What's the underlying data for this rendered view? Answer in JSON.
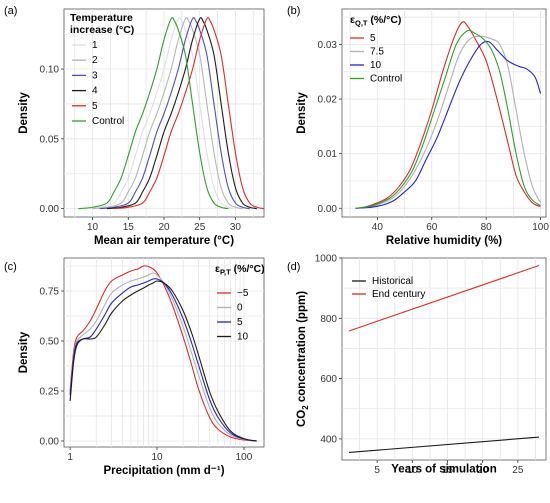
{
  "colors": {
    "c1": "#e0e0e0",
    "c2": "#b4b4b4",
    "c3": "#4d4db8",
    "c4": "#1a1a1a",
    "c5": "#d72c2c",
    "control": "#2ca02c",
    "eq_5": "#d72c2c",
    "eq_7_5": "#b0b0b0",
    "eq_10": "#2222cc",
    "eq_control": "#2ca02c",
    "p_m5": "#d72c2c",
    "p_0": "#b0b0b0",
    "p_5": "#2222cc",
    "p_10": "#1a1a1a",
    "historical": "#1a1a1a",
    "endcentury": "#d72c2c"
  },
  "chart_data": [
    {
      "id": "a",
      "panel_label": "(a)",
      "type": "line",
      "xlabel": "Mean air temperature (°C)",
      "ylabel": "Density",
      "xlim": [
        6,
        34
      ],
      "ylim": [
        -0.006,
        0.143
      ],
      "xticks": [
        10,
        15,
        20,
        25,
        30
      ],
      "yticks": [
        0,
        0.05,
        0.1
      ],
      "yticklabels": [
        "0.00",
        "0.05",
        "0.10"
      ],
      "legend_title": [
        "Temperature",
        "increase (°C)"
      ],
      "series": [
        {
          "name": "1",
          "color": "c1",
          "shift": 1
        },
        {
          "name": "2",
          "color": "c2",
          "shift": 2
        },
        {
          "name": "3",
          "color": "c3",
          "shift": 3
        },
        {
          "name": "4",
          "color": "c4",
          "shift": 4
        },
        {
          "name": "5",
          "color": "c5",
          "shift": 5
        },
        {
          "name": "Control",
          "color": "control",
          "shift": 0
        }
      ],
      "control_curve": [
        [
          8,
          0
        ],
        [
          10,
          0.001
        ],
        [
          12,
          0.004
        ],
        [
          13,
          0.012
        ],
        [
          14,
          0.022
        ],
        [
          15,
          0.038
        ],
        [
          16,
          0.055
        ],
        [
          17,
          0.068
        ],
        [
          18,
          0.083
        ],
        [
          19,
          0.1
        ],
        [
          20,
          0.121
        ],
        [
          21,
          0.136
        ],
        [
          21.5,
          0.134
        ],
        [
          22,
          0.128
        ],
        [
          23,
          0.11
        ],
        [
          24,
          0.075
        ],
        [
          25,
          0.04
        ],
        [
          26,
          0.015
        ],
        [
          27,
          0.004
        ],
        [
          28,
          0.001
        ],
        [
          29,
          0
        ]
      ]
    },
    {
      "id": "b",
      "panel_label": "(b)",
      "type": "line",
      "xlabel": "Relative humidity (%)",
      "ylabel": "Density",
      "xlim": [
        27,
        102
      ],
      "ylim": [
        -0.0016,
        0.0365
      ],
      "xticks": [
        40,
        60,
        80,
        100
      ],
      "yticks": [
        0,
        0.01,
        0.02,
        0.03
      ],
      "yticklabels": [
        "0.00",
        "0.01",
        "0.02",
        "0.03"
      ],
      "legend_title": [
        "ε",
        "Q,T",
        " (%/°C)"
      ],
      "series": [
        {
          "name": "5",
          "color": "eq_5",
          "points": [
            [
              32,
              0
            ],
            [
              36,
              0.0003
            ],
            [
              40,
              0.001
            ],
            [
              44,
              0.002
            ],
            [
              48,
              0.004
            ],
            [
              52,
              0.007
            ],
            [
              56,
              0.012
            ],
            [
              60,
              0.018
            ],
            [
              64,
              0.025
            ],
            [
              68,
              0.031
            ],
            [
              71,
              0.034
            ],
            [
              73,
              0.0335
            ],
            [
              76,
              0.031
            ],
            [
              80,
              0.027
            ],
            [
              84,
              0.02
            ],
            [
              88,
              0.012
            ],
            [
              91,
              0.006
            ],
            [
              94,
              0.003
            ],
            [
              97,
              0.001
            ],
            [
              100,
              0.0003
            ]
          ]
        },
        {
          "name": "7.5",
          "color": "eq_7_5",
          "points": [
            [
              32,
              0
            ],
            [
              38,
              0.0003
            ],
            [
              42,
              0.001
            ],
            [
              46,
              0.002
            ],
            [
              50,
              0.004
            ],
            [
              54,
              0.007
            ],
            [
              58,
              0.011
            ],
            [
              62,
              0.016
            ],
            [
              66,
              0.022
            ],
            [
              70,
              0.028
            ],
            [
              74,
              0.031
            ],
            [
              78,
              0.0315
            ],
            [
              82,
              0.031
            ],
            [
              85,
              0.03
            ],
            [
              88,
              0.026
            ],
            [
              91,
              0.018
            ],
            [
              94,
              0.01
            ],
            [
              97,
              0.004
            ],
            [
              100,
              0.001
            ]
          ]
        },
        {
          "name": "10",
          "color": "eq_10",
          "points": [
            [
              32,
              0
            ],
            [
              38,
              0.0002
            ],
            [
              42,
              0.0006
            ],
            [
              46,
              0.0014
            ],
            [
              50,
              0.003
            ],
            [
              54,
              0.005
            ],
            [
              58,
              0.009
            ],
            [
              62,
              0.013
            ],
            [
              66,
              0.018
            ],
            [
              70,
              0.023
            ],
            [
              74,
              0.027
            ],
            [
              78,
              0.03
            ],
            [
              81,
              0.0305
            ],
            [
              84,
              0.029
            ],
            [
              88,
              0.027
            ],
            [
              92,
              0.026
            ],
            [
              95,
              0.0255
            ],
            [
              98,
              0.024
            ],
            [
              100,
              0.021
            ]
          ]
        },
        {
          "name": "Control",
          "color": "eq_control",
          "points": [
            [
              32,
              0
            ],
            [
              37,
              0.0003
            ],
            [
              41,
              0.001
            ],
            [
              45,
              0.002
            ],
            [
              49,
              0.004
            ],
            [
              53,
              0.007
            ],
            [
              57,
              0.012
            ],
            [
              61,
              0.018
            ],
            [
              65,
              0.024
            ],
            [
              69,
              0.03
            ],
            [
              73,
              0.0325
            ],
            [
              76,
              0.032
            ],
            [
              79,
              0.031
            ],
            [
              82,
              0.029
            ],
            [
              85,
              0.025
            ],
            [
              88,
              0.018
            ],
            [
              91,
              0.01
            ],
            [
              94,
              0.004
            ],
            [
              97,
              0.0015
            ],
            [
              100,
              0.0005
            ]
          ]
        }
      ]
    },
    {
      "id": "c",
      "panel_label": "(c)",
      "type": "line",
      "xscale": "log",
      "xlabel": "Precipitation (mm d⁻¹)",
      "ylabel": "Density",
      "xlim": [
        0.85,
        170
      ],
      "ylim": [
        -0.03,
        0.915
      ],
      "xticks": [
        1,
        10,
        100
      ],
      "yticks": [
        0,
        0.25,
        0.5,
        0.75
      ],
      "yticklabels": [
        "0.00",
        "0.25",
        "0.50",
        "0.75"
      ],
      "legend_title": [
        "ε",
        "P,T",
        " (%/°C)"
      ],
      "series": [
        {
          "name": "−5",
          "color": "p_m5",
          "points": [
            [
              1,
              0.25
            ],
            [
              1.1,
              0.45
            ],
            [
              1.2,
              0.52
            ],
            [
              1.4,
              0.55
            ],
            [
              1.7,
              0.6
            ],
            [
              2,
              0.66
            ],
            [
              2.5,
              0.75
            ],
            [
              3,
              0.8
            ],
            [
              4,
              0.83
            ],
            [
              5,
              0.85
            ],
            [
              6,
              0.86
            ],
            [
              7,
              0.875
            ],
            [
              8,
              0.872
            ],
            [
              9,
              0.86
            ],
            [
              10,
              0.84
            ],
            [
              12,
              0.78
            ],
            [
              15,
              0.68
            ],
            [
              20,
              0.52
            ],
            [
              25,
              0.38
            ],
            [
              30,
              0.26
            ],
            [
              40,
              0.12
            ],
            [
              50,
              0.06
            ],
            [
              70,
              0.02
            ],
            [
              100,
              0.005
            ],
            [
              140,
              0
            ]
          ]
        },
        {
          "name": "0",
          "color": "p_0",
          "points": [
            [
              1,
              0.24
            ],
            [
              1.1,
              0.43
            ],
            [
              1.2,
              0.5
            ],
            [
              1.4,
              0.53
            ],
            [
              1.7,
              0.56
            ],
            [
              2,
              0.6
            ],
            [
              2.5,
              0.68
            ],
            [
              3,
              0.74
            ],
            [
              4,
              0.78
            ],
            [
              5,
              0.8
            ],
            [
              6,
              0.81
            ],
            [
              7,
              0.82
            ],
            [
              8,
              0.83
            ],
            [
              9,
              0.84
            ],
            [
              10,
              0.83
            ],
            [
              12,
              0.79
            ],
            [
              15,
              0.71
            ],
            [
              20,
              0.57
            ],
            [
              25,
              0.44
            ],
            [
              30,
              0.33
            ],
            [
              40,
              0.17
            ],
            [
              50,
              0.09
            ],
            [
              70,
              0.03
            ],
            [
              100,
              0.008
            ],
            [
              140,
              0
            ]
          ]
        },
        {
          "name": "5",
          "color": "p_5",
          "points": [
            [
              1,
              0.23
            ],
            [
              1.1,
              0.42
            ],
            [
              1.2,
              0.49
            ],
            [
              1.4,
              0.51
            ],
            [
              1.7,
              0.52
            ],
            [
              2,
              0.56
            ],
            [
              2.5,
              0.63
            ],
            [
              3,
              0.69
            ],
            [
              4,
              0.74
            ],
            [
              5,
              0.77
            ],
            [
              6,
              0.78
            ],
            [
              7,
              0.79
            ],
            [
              8,
              0.8
            ],
            [
              9,
              0.81
            ],
            [
              10,
              0.81
            ],
            [
              12,
              0.79
            ],
            [
              15,
              0.73
            ],
            [
              20,
              0.61
            ],
            [
              25,
              0.49
            ],
            [
              30,
              0.38
            ],
            [
              40,
              0.21
            ],
            [
              50,
              0.12
            ],
            [
              70,
              0.04
            ],
            [
              100,
              0.01
            ],
            [
              140,
              0
            ]
          ]
        },
        {
          "name": "10",
          "color": "p_10",
          "points": [
            [
              1,
              0.2
            ],
            [
              1.1,
              0.4
            ],
            [
              1.2,
              0.48
            ],
            [
              1.4,
              0.51
            ],
            [
              1.7,
              0.51
            ],
            [
              2,
              0.52
            ],
            [
              2.5,
              0.58
            ],
            [
              3,
              0.64
            ],
            [
              4,
              0.7
            ],
            [
              5,
              0.73
            ],
            [
              6,
              0.75
            ],
            [
              7,
              0.765
            ],
            [
              8,
              0.78
            ],
            [
              9,
              0.79
            ],
            [
              10,
              0.8
            ],
            [
              12,
              0.79
            ],
            [
              15,
              0.75
            ],
            [
              20,
              0.65
            ],
            [
              25,
              0.54
            ],
            [
              30,
              0.43
            ],
            [
              40,
              0.25
            ],
            [
              50,
              0.15
            ],
            [
              70,
              0.05
            ],
            [
              100,
              0.012
            ],
            [
              140,
              0
            ]
          ]
        }
      ]
    },
    {
      "id": "d",
      "panel_label": "(d)",
      "type": "line",
      "xlabel": "Years of simulation",
      "ylabel_parts": [
        "CO",
        "2",
        " concentration (ppm)"
      ],
      "xlim": [
        0,
        29
      ],
      "ylim": [
        330,
        1000
      ],
      "xticks": [
        5,
        10,
        15,
        20,
        25
      ],
      "yticks": [
        400,
        600,
        800,
        1000
      ],
      "yticklabels": [
        "400",
        "600",
        "800",
        "1000"
      ],
      "series": [
        {
          "name": "Historical",
          "color": "historical",
          "points": [
            [
              1,
              355
            ],
            [
              28,
              406
            ]
          ]
        },
        {
          "name": "End century",
          "color": "endcentury",
          "points": [
            [
              1,
              758
            ],
            [
              28,
              975
            ]
          ]
        }
      ]
    }
  ]
}
